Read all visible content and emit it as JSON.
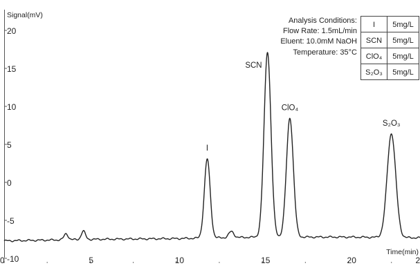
{
  "chart_data": {
    "type": "line",
    "ylabel": "Signal(mV)",
    "xlabel": "Time(min)",
    "xlim": [
      0,
      24.2
    ],
    "ylim": [
      -10,
      22
    ],
    "x_ticks": [
      0,
      5,
      10,
      15,
      20
    ],
    "x_tick_labels": [
      "0",
      "5",
      "10",
      "15",
      "20"
    ],
    "y_ticks": [
      20,
      15,
      10,
      5,
      0,
      -5,
      -10
    ],
    "y_tick_labels": [
      "20",
      "15",
      "10",
      "5",
      "0",
      "-5",
      "-10"
    ],
    "grid": false,
    "baseline": [
      [
        0,
        -7.7
      ],
      [
        5,
        -7.5
      ],
      [
        10,
        -7.4
      ],
      [
        15,
        -7.2
      ],
      [
        20,
        -7.2
      ],
      [
        24.2,
        -7.3
      ]
    ],
    "peaks": [
      {
        "label": "",
        "t": 3.6,
        "height": 0.8,
        "width": 0.12
      },
      {
        "label": "",
        "t": 4.6,
        "height": 1.1,
        "width": 0.12
      },
      {
        "label": "I",
        "t": 11.8,
        "height": 10.4,
        "width": 0.17
      },
      {
        "label": "",
        "t": 13.2,
        "height": 0.8,
        "width": 0.15
      },
      {
        "label": "SCN",
        "t": 15.3,
        "height": 24.4,
        "width": 0.2
      },
      {
        "label": "ClO₄",
        "t": 16.6,
        "height": 15.7,
        "width": 0.2
      },
      {
        "label": "S₂O₃",
        "t": 22.5,
        "height": 13.7,
        "width": 0.25
      }
    ],
    "line_color": "#222222"
  },
  "conditions": {
    "title": "Analysis Conditions:",
    "flow_rate": "Flow Rate: 1.5mL/min",
    "eluent": "Eluent: 10.0mM NaOH",
    "temperature": "Temperature: 35°C"
  },
  "table": {
    "rows": [
      {
        "ion": "I",
        "conc": "5mg/L"
      },
      {
        "ion": "SCN",
        "conc": "5mg/L"
      },
      {
        "ion": "ClO₄",
        "conc": "5mg/L"
      },
      {
        "ion": "S₂O₃",
        "conc": "5mg/L"
      }
    ]
  }
}
